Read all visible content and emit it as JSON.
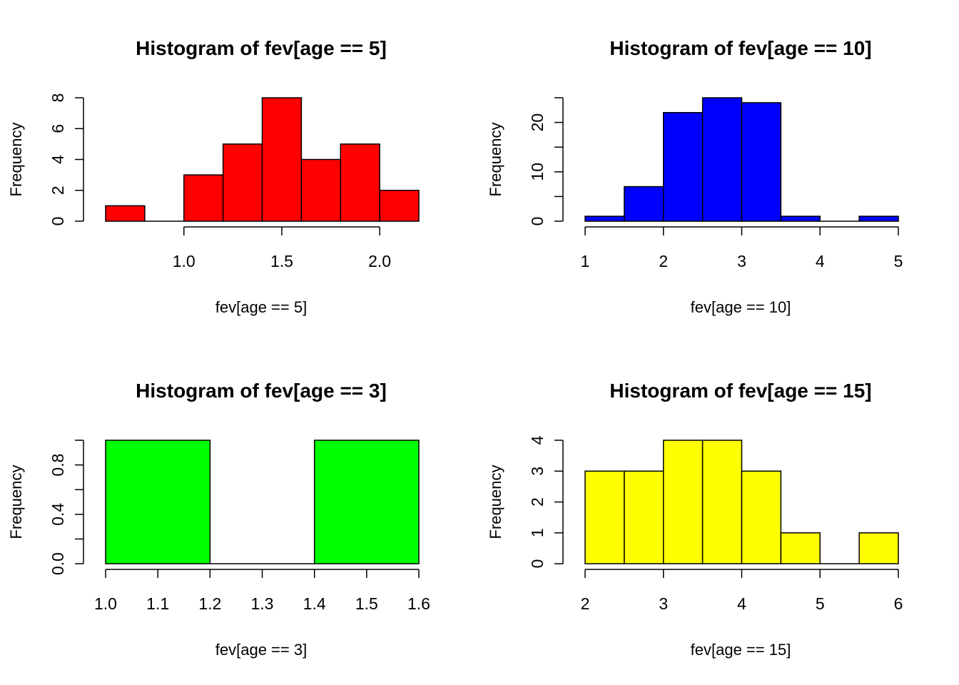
{
  "chart_data": [
    {
      "type": "bar",
      "title": "Histogram of fev[age == 5]",
      "xlabel": "fev[age == 5]",
      "ylabel": "Frequency",
      "color": "#ff0000",
      "bins": [
        [
          0.6,
          0.8
        ],
        [
          0.8,
          1.0
        ],
        [
          1.0,
          1.2
        ],
        [
          1.2,
          1.4
        ],
        [
          1.4,
          1.6
        ],
        [
          1.6,
          1.8
        ],
        [
          1.8,
          2.0
        ],
        [
          2.0,
          2.2
        ]
      ],
      "values": [
        1,
        0,
        3,
        5,
        8,
        4,
        5,
        2
      ],
      "xlim": [
        0.6,
        2.2
      ],
      "ylim": [
        0,
        8
      ],
      "xaxis": {
        "range": [
          1.0,
          2.0
        ],
        "ticks": [
          1.0,
          1.5,
          2.0
        ],
        "labels": [
          "1.0",
          "1.5",
          "2.0"
        ]
      },
      "yaxis": {
        "ticks": [
          0,
          2,
          4,
          6,
          8
        ],
        "labels": [
          "0",
          "2",
          "4",
          "6",
          "8"
        ]
      }
    },
    {
      "type": "bar",
      "title": "Histogram of fev[age == 10]",
      "xlabel": "fev[age == 10]",
      "ylabel": "Frequency",
      "color": "#0000ff",
      "bins": [
        [
          1.0,
          1.5
        ],
        [
          1.5,
          2.0
        ],
        [
          2.0,
          2.5
        ],
        [
          2.5,
          3.0
        ],
        [
          3.0,
          3.5
        ],
        [
          3.5,
          4.0
        ],
        [
          4.0,
          4.5
        ],
        [
          4.5,
          5.0
        ]
      ],
      "values": [
        1,
        7,
        22,
        25,
        24,
        1,
        0,
        1
      ],
      "xlim": [
        1,
        5
      ],
      "ylim": [
        0,
        25
      ],
      "xaxis": {
        "range": [
          1,
          5
        ],
        "ticks": [
          1,
          2,
          3,
          4,
          5
        ],
        "labels": [
          "1",
          "2",
          "3",
          "4",
          "5"
        ]
      },
      "yaxis": {
        "ticks": [
          0,
          10,
          20
        ],
        "labels": [
          "0",
          "10",
          "20"
        ],
        "minor_ticks": [
          5,
          15,
          25
        ]
      }
    },
    {
      "type": "bar",
      "title": "Histogram of fev[age == 3]",
      "xlabel": "fev[age == 3]",
      "ylabel": "Frequency",
      "color": "#00ff00",
      "bins": [
        [
          1.0,
          1.2
        ],
        [
          1.2,
          1.4
        ],
        [
          1.4,
          1.6
        ]
      ],
      "values": [
        1,
        0,
        1
      ],
      "xlim": [
        1.0,
        1.6
      ],
      "ylim": [
        0,
        1
      ],
      "xaxis": {
        "range": [
          1.0,
          1.6
        ],
        "ticks": [
          1.0,
          1.1,
          1.2,
          1.3,
          1.4,
          1.5,
          1.6
        ],
        "labels": [
          "1.0",
          "1.1",
          "1.2",
          "1.3",
          "1.4",
          "1.5",
          "1.6"
        ]
      },
      "yaxis": {
        "ticks": [
          0.0,
          0.4,
          0.8
        ],
        "labels": [
          "0.0",
          "0.4",
          "0.8"
        ],
        "minor_ticks": [
          0.2,
          0.6,
          1.0
        ]
      }
    },
    {
      "type": "bar",
      "title": "Histogram of fev[age == 15]",
      "xlabel": "fev[age == 15]",
      "ylabel": "Frequency",
      "color": "#ffff00",
      "bins": [
        [
          2.0,
          2.5
        ],
        [
          2.5,
          3.0
        ],
        [
          3.0,
          3.5
        ],
        [
          3.5,
          4.0
        ],
        [
          4.0,
          4.5
        ],
        [
          4.5,
          5.0
        ],
        [
          5.0,
          5.5
        ],
        [
          5.5,
          6.0
        ]
      ],
      "values": [
        3,
        3,
        4,
        4,
        3,
        1,
        0,
        1
      ],
      "xlim": [
        2,
        6
      ],
      "ylim": [
        0,
        4
      ],
      "xaxis": {
        "range": [
          2,
          6
        ],
        "ticks": [
          2,
          3,
          4,
          5,
          6
        ],
        "labels": [
          "2",
          "3",
          "4",
          "5",
          "6"
        ]
      },
      "yaxis": {
        "ticks": [
          0,
          1,
          2,
          3,
          4
        ],
        "labels": [
          "0",
          "1",
          "2",
          "3",
          "4"
        ]
      }
    }
  ]
}
